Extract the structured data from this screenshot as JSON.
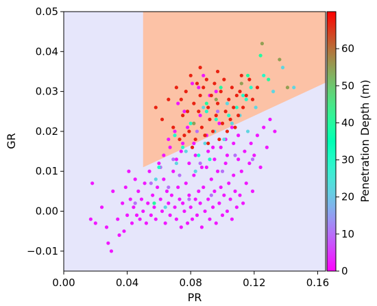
{
  "chart_data": {
    "type": "scatter",
    "xlabel": "PR",
    "ylabel": "GR",
    "colorbar_label": "Penetration Depth (m)",
    "xlim": [
      0.0,
      0.165
    ],
    "ylim": [
      -0.015,
      0.05
    ],
    "x_ticks": [
      0.0,
      0.04,
      0.08,
      0.12,
      0.16
    ],
    "x_tick_labels": [
      "0.00",
      "0.04",
      "0.08",
      "0.12",
      "0.16"
    ],
    "y_ticks": [
      -0.01,
      0.0,
      0.01,
      0.02,
      0.03,
      0.04,
      0.05
    ],
    "y_tick_labels": [
      "−0.01",
      "0.00",
      "0.01",
      "0.02",
      "0.03",
      "0.04",
      "0.05"
    ],
    "colorbar_range": [
      0,
      70
    ],
    "colorbar_ticks": [
      0,
      10,
      20,
      30,
      40,
      50,
      60
    ],
    "colorbar_tick_labels": [
      "0",
      "10",
      "20",
      "30",
      "40",
      "50",
      "60"
    ],
    "colormap": "rainbow",
    "regions": {
      "background_color": "#e6e6fb",
      "wedge_color": "#fcc2a6",
      "wedge_vertices": [
        [
          0.05,
          0.05
        ],
        [
          0.05,
          0.011
        ],
        [
          0.165,
          0.0322
        ],
        [
          0.165,
          0.05
        ]
      ]
    },
    "grid": false,
    "points": [
      [
        0.017,
        -0.002,
        2
      ],
      [
        0.018,
        0.007,
        2
      ],
      [
        0.02,
        -0.003,
        2
      ],
      [
        0.024,
        0.001,
        2
      ],
      [
        0.027,
        -0.004,
        2
      ],
      [
        0.028,
        -0.008,
        2
      ],
      [
        0.03,
        -0.01,
        2
      ],
      [
        0.031,
        0.005,
        2
      ],
      [
        0.034,
        -0.002,
        2
      ],
      [
        0.035,
        -0.006,
        2
      ],
      [
        0.037,
        0.002,
        2
      ],
      [
        0.038,
        -0.005,
        2
      ],
      [
        0.039,
        0.006,
        2
      ],
      [
        0.04,
        -0.001,
        2
      ],
      [
        0.041,
        0.01,
        2
      ],
      [
        0.042,
        0.003,
        2
      ],
      [
        0.043,
        -0.003,
        2
      ],
      [
        0.044,
        0.001,
        2
      ],
      [
        0.045,
        0.008,
        2
      ],
      [
        0.046,
        -0.001,
        2
      ],
      [
        0.047,
        0.005,
        2
      ],
      [
        0.048,
        -0.002,
        2
      ],
      [
        0.049,
        0.003,
        2
      ],
      [
        0.05,
        0.0,
        2
      ],
      [
        0.051,
        0.007,
        2
      ],
      [
        0.052,
        -0.003,
        2
      ],
      [
        0.053,
        0.002,
        2
      ],
      [
        0.054,
        0.01,
        2
      ],
      [
        0.055,
        -0.001,
        2
      ],
      [
        0.056,
        0.004,
        2
      ],
      [
        0.057,
        0.001,
        2
      ],
      [
        0.058,
        -0.002,
        2
      ],
      [
        0.059,
        0.006,
        2
      ],
      [
        0.06,
        0.012,
        2
      ],
      [
        0.061,
        0.003,
        2
      ],
      [
        0.062,
        0.0,
        2
      ],
      [
        0.063,
        0.008,
        2
      ],
      [
        0.064,
        -0.003,
        2
      ],
      [
        0.065,
        0.005,
        2
      ],
      [
        0.066,
        0.002,
        2
      ],
      [
        0.067,
        -0.001,
        2
      ],
      [
        0.068,
        0.004,
        2
      ],
      [
        0.069,
        0.01,
        2
      ],
      [
        0.07,
        0.001,
        2
      ],
      [
        0.071,
        -0.002,
        2
      ],
      [
        0.072,
        0.006,
        2
      ],
      [
        0.073,
        0.003,
        2
      ],
      [
        0.074,
        -0.004,
        2
      ],
      [
        0.075,
        0.002,
        2
      ],
      [
        0.076,
        0.0,
        2
      ],
      [
        0.077,
        0.007,
        2
      ],
      [
        0.078,
        -0.003,
        2
      ],
      [
        0.079,
        0.004,
        2
      ],
      [
        0.08,
        0.001,
        2
      ],
      [
        0.081,
        -0.002,
        2
      ],
      [
        0.082,
        0.009,
        2
      ],
      [
        0.083,
        0.003,
        2
      ],
      [
        0.084,
        -0.001,
        2
      ],
      [
        0.085,
        0.005,
        2
      ],
      [
        0.086,
        0.002,
        2
      ],
      [
        0.087,
        -0.004,
        2
      ],
      [
        0.088,
        0.006,
        2
      ],
      [
        0.089,
        0.0,
        2
      ],
      [
        0.09,
        0.011,
        2
      ],
      [
        0.091,
        0.003,
        2
      ],
      [
        0.092,
        -0.002,
        2
      ],
      [
        0.093,
        0.008,
        2
      ],
      [
        0.094,
        0.001,
        2
      ],
      [
        0.095,
        0.005,
        2
      ],
      [
        0.096,
        -0.003,
        2
      ],
      [
        0.097,
        0.01,
        2
      ],
      [
        0.098,
        0.002,
        2
      ],
      [
        0.099,
        0.006,
        2
      ],
      [
        0.1,
        -0.001,
        2
      ],
      [
        0.101,
        0.004,
        2
      ],
      [
        0.102,
        0.012,
        2
      ],
      [
        0.103,
        0.0,
        2
      ],
      [
        0.104,
        0.007,
        2
      ],
      [
        0.105,
        0.003,
        2
      ],
      [
        0.106,
        -0.002,
        2
      ],
      [
        0.107,
        0.009,
        2
      ],
      [
        0.108,
        0.005,
        2
      ],
      [
        0.109,
        0.001,
        2
      ],
      [
        0.11,
        0.013,
        2
      ],
      [
        0.111,
        0.004,
        2
      ],
      [
        0.112,
        0.01,
        2
      ],
      [
        0.113,
        0.002,
        2
      ],
      [
        0.114,
        0.015,
        2
      ],
      [
        0.115,
        0.007,
        2
      ],
      [
        0.117,
        0.012,
        2
      ],
      [
        0.118,
        0.017,
        2
      ],
      [
        0.119,
        0.005,
        2
      ],
      [
        0.12,
        0.014,
        2
      ],
      [
        0.122,
        0.019,
        2
      ],
      [
        0.124,
        0.011,
        2
      ],
      [
        0.126,
        0.021,
        2
      ],
      [
        0.128,
        0.016,
        2
      ],
      [
        0.13,
        0.023,
        2
      ],
      [
        0.133,
        0.02,
        2
      ],
      [
        0.066,
        0.018,
        2
      ],
      [
        0.07,
        0.02,
        2
      ],
      [
        0.074,
        0.015,
        2
      ],
      [
        0.078,
        0.021,
        2
      ],
      [
        0.082,
        0.017,
        2
      ],
      [
        0.086,
        0.024,
        2
      ],
      [
        0.09,
        0.019,
        2
      ],
      [
        0.094,
        0.016,
        2
      ],
      [
        0.098,
        0.022,
        2
      ],
      [
        0.102,
        0.018,
        2
      ],
      [
        0.106,
        0.021,
        2
      ],
      [
        0.11,
        0.019,
        2
      ],
      [
        0.081,
        0.032,
        2
      ],
      [
        0.085,
        0.031,
        2
      ],
      [
        0.088,
        0.034,
        2
      ],
      [
        0.092,
        0.029,
        2
      ],
      [
        0.096,
        0.03,
        2
      ],
      [
        0.072,
        0.027,
        2
      ],
      [
        0.076,
        0.025,
        2
      ],
      [
        0.063,
        0.014,
        2
      ],
      [
        0.067,
        0.016,
        2
      ],
      [
        0.071,
        0.013,
        2
      ],
      [
        0.075,
        0.017,
        2
      ],
      [
        0.079,
        0.012,
        2
      ],
      [
        0.083,
        0.014,
        2
      ],
      [
        0.087,
        0.011,
        2
      ],
      [
        0.091,
        0.015,
        2
      ],
      [
        0.095,
        0.013,
        2
      ],
      [
        0.099,
        0.016,
        2
      ],
      [
        0.103,
        0.014,
        2
      ],
      [
        0.107,
        0.017,
        2
      ],
      [
        0.045,
        0.002,
        10
      ],
      [
        0.055,
        0.007,
        10
      ],
      [
        0.061,
        0.011,
        10
      ],
      [
        0.066,
        0.006,
        10
      ],
      [
        0.073,
        0.009,
        10
      ],
      [
        0.079,
        0.003,
        10
      ],
      [
        0.086,
        0.012,
        10
      ],
      [
        0.093,
        0.004,
        10
      ],
      [
        0.1,
        0.01,
        10
      ],
      [
        0.108,
        0.014,
        10
      ],
      [
        0.119,
        0.013,
        10
      ],
      [
        0.069,
        0.013,
        10
      ],
      [
        0.084,
        0.02,
        10
      ],
      [
        0.097,
        0.025,
        10
      ],
      [
        0.058,
        0.008,
        22
      ],
      [
        0.064,
        0.001,
        22
      ],
      [
        0.071,
        0.012,
        22
      ],
      [
        0.077,
        0.015,
        22
      ],
      [
        0.083,
        0.01,
        22
      ],
      [
        0.089,
        0.017,
        22
      ],
      [
        0.095,
        0.02,
        22
      ],
      [
        0.101,
        0.018,
        22
      ],
      [
        0.106,
        0.022,
        22
      ],
      [
        0.111,
        0.024,
        22
      ],
      [
        0.116,
        0.02,
        22
      ],
      [
        0.121,
        0.026,
        22
      ],
      [
        0.132,
        0.03,
        22
      ],
      [
        0.138,
        0.036,
        22
      ],
      [
        0.145,
        0.031,
        22
      ],
      [
        0.088,
        0.026,
        22
      ],
      [
        0.103,
        0.027,
        22
      ],
      [
        0.06,
        0.011,
        30
      ],
      [
        0.07,
        0.019,
        30
      ],
      [
        0.08,
        0.022,
        30
      ],
      [
        0.09,
        0.025,
        30
      ],
      [
        0.096,
        0.023,
        30
      ],
      [
        0.104,
        0.024,
        30
      ],
      [
        0.109,
        0.026,
        30
      ],
      [
        0.113,
        0.029,
        30
      ],
      [
        0.118,
        0.031,
        30
      ],
      [
        0.126,
        0.034,
        30
      ],
      [
        0.075,
        0.016,
        30
      ],
      [
        0.085,
        0.014,
        30
      ],
      [
        0.092,
        0.013,
        30
      ],
      [
        0.115,
        0.028,
        30
      ],
      [
        0.057,
        0.002,
        40
      ],
      [
        0.09,
        0.027,
        40
      ],
      [
        0.099,
        0.031,
        40
      ],
      [
        0.116,
        0.034,
        40
      ],
      [
        0.124,
        0.039,
        40
      ],
      [
        0.129,
        0.033,
        40
      ],
      [
        0.096,
        0.028,
        55
      ],
      [
        0.112,
        0.032,
        55
      ],
      [
        0.125,
        0.042,
        55
      ],
      [
        0.136,
        0.038,
        55
      ],
      [
        0.141,
        0.031,
        55
      ],
      [
        0.082,
        0.022,
        55
      ],
      [
        0.058,
        0.026,
        67
      ],
      [
        0.062,
        0.023,
        67
      ],
      [
        0.066,
        0.028,
        67
      ],
      [
        0.069,
        0.021,
        67
      ],
      [
        0.071,
        0.031,
        67
      ],
      [
        0.073,
        0.018,
        67
      ],
      [
        0.075,
        0.024,
        67
      ],
      [
        0.077,
        0.03,
        67
      ],
      [
        0.079,
        0.02,
        67
      ],
      [
        0.08,
        0.034,
        67
      ],
      [
        0.082,
        0.027,
        67
      ],
      [
        0.083,
        0.018,
        67
      ],
      [
        0.084,
        0.032,
        67
      ],
      [
        0.085,
        0.025,
        67
      ],
      [
        0.086,
        0.029,
        67
      ],
      [
        0.087,
        0.021,
        67
      ],
      [
        0.088,
        0.031,
        67
      ],
      [
        0.089,
        0.019,
        67
      ],
      [
        0.09,
        0.033,
        67
      ],
      [
        0.091,
        0.026,
        67
      ],
      [
        0.092,
        0.023,
        67
      ],
      [
        0.093,
        0.029,
        67
      ],
      [
        0.094,
        0.02,
        67
      ],
      [
        0.095,
        0.032,
        67
      ],
      [
        0.096,
        0.024,
        67
      ],
      [
        0.097,
        0.027,
        67
      ],
      [
        0.098,
        0.018,
        67
      ],
      [
        0.099,
        0.03,
        67
      ],
      [
        0.1,
        0.022,
        67
      ],
      [
        0.101,
        0.033,
        67
      ],
      [
        0.102,
        0.025,
        67
      ],
      [
        0.103,
        0.02,
        67
      ],
      [
        0.104,
        0.028,
        67
      ],
      [
        0.105,
        0.023,
        67
      ],
      [
        0.106,
        0.031,
        67
      ],
      [
        0.107,
        0.026,
        67
      ],
      [
        0.108,
        0.021,
        67
      ],
      [
        0.109,
        0.029,
        67
      ],
      [
        0.11,
        0.024,
        67
      ],
      [
        0.111,
        0.03,
        67
      ],
      [
        0.113,
        0.026,
        67
      ],
      [
        0.115,
        0.029,
        67
      ],
      [
        0.117,
        0.033,
        67
      ],
      [
        0.119,
        0.028,
        67
      ],
      [
        0.122,
        0.031,
        67
      ],
      [
        0.078,
        0.025,
        67
      ],
      [
        0.076,
        0.019,
        67
      ],
      [
        0.074,
        0.028,
        67
      ],
      [
        0.081,
        0.016,
        67
      ],
      [
        0.086,
        0.036,
        67
      ],
      [
        0.091,
        0.017,
        67
      ],
      [
        0.097,
        0.035,
        67
      ],
      [
        0.112,
        0.034,
        67
      ]
    ]
  }
}
